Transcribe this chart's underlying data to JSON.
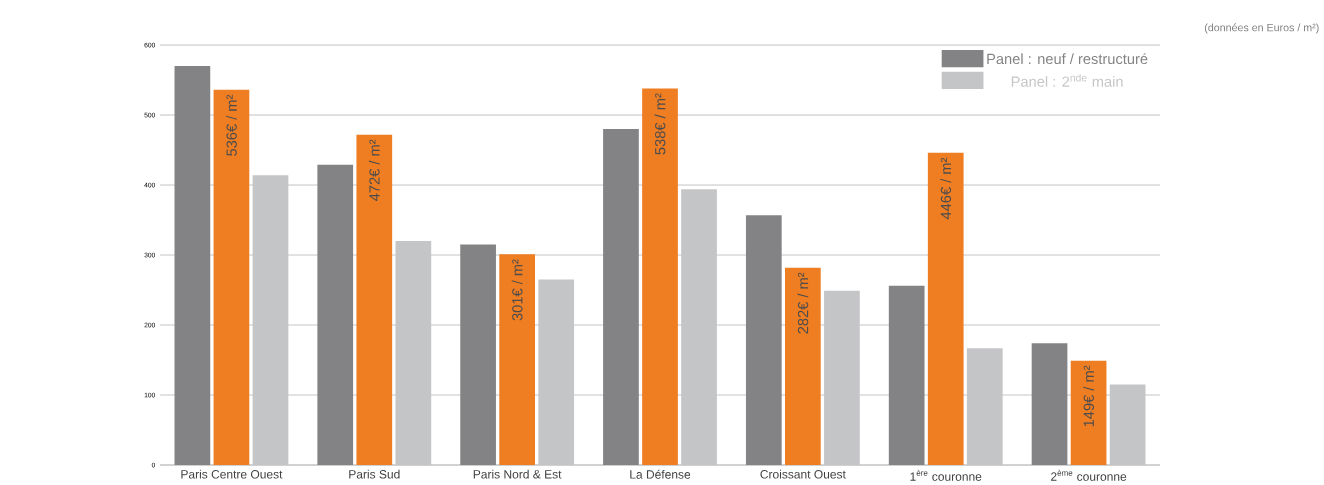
{
  "chart_data": {
    "type": "bar",
    "categories": [
      "Paris Centre Ouest",
      "Paris Sud",
      "Paris Nord & Est",
      "La Défense",
      "Croissant Ouest",
      "1$^{ère}$ couronne",
      "2$^{ème}$ couronne"
    ],
    "series": [
      {
        "name": "Panel : neuf / restructuré",
        "color": "#838385",
        "values": [
          570,
          429,
          315,
          480,
          357,
          256,
          174
        ]
      },
      {
        "color": "#ef7d22",
        "values": [
          536,
          472,
          301,
          538,
          282,
          446,
          149
        ],
        "value_labels": [
          "536€ / m²",
          "472€ / m²",
          "301€ / m²",
          "538€ / m²",
          "282€ / m²",
          "446€ / m²",
          "149€ / m²"
        ]
      },
      {
        "name": "Panel : 2$^{nde}$ main",
        "color": "#c4c5c7",
        "values": [
          414,
          320,
          265,
          394,
          249,
          167,
          115
        ]
      }
    ],
    "ylim": [
      0,
      600
    ],
    "yticks": [
      0,
      100,
      200,
      300,
      400,
      500,
      600
    ],
    "grid": "y",
    "legend": "top right",
    "annotations": [
      "(données en Euros / m²)"
    ]
  }
}
